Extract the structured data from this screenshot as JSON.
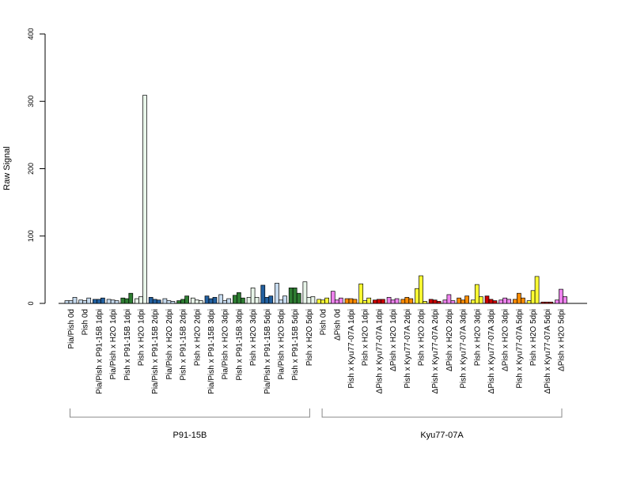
{
  "chart_data": {
    "type": "bar",
    "ylabel": "Raw Signal",
    "ylim": [
      0,
      400
    ],
    "yticks": [
      0,
      100,
      200,
      300,
      400
    ],
    "grid": false,
    "legend": "none",
    "bars_per_group": 3,
    "groups": [
      {
        "label": "Pia/Pish 0d",
        "colors": [
          "#c6dbef",
          "#c6dbef",
          "#c6dbef"
        ],
        "values": [
          4,
          4,
          9
        ]
      },
      {
        "label": "Pish 0d",
        "colors": [
          "#c6dbef",
          "#c6dbef",
          "#c6dbef"
        ],
        "values": [
          5,
          4,
          8
        ]
      },
      {
        "label": "Pia/Pish x P91-15B 1dpi",
        "colors": [
          "#2260a0",
          "#2260a0",
          "#2260a0"
        ],
        "values": [
          6,
          6,
          8
        ]
      },
      {
        "label": "Pia/Pish x H2O 1dpi",
        "colors": [
          "#c6dbef",
          "#c6dbef",
          "#c6dbef"
        ],
        "values": [
          6,
          5,
          4
        ]
      },
      {
        "label": "Pish x P91-15B 1dpi",
        "colors": [
          "#2e7d32",
          "#2e7d32",
          "#2e7d32"
        ],
        "values": [
          8,
          7,
          15
        ]
      },
      {
        "label": "Pish x H2O 1dpi",
        "colors": [
          "#e8f5e9",
          "#e8f5e9",
          "#e8f5e9"
        ],
        "values": [
          7,
          10,
          309
        ]
      },
      {
        "label": "Pia/Pish x P91-15B 2dpi",
        "colors": [
          "#2260a0",
          "#2260a0",
          "#2260a0"
        ],
        "values": [
          9,
          6,
          5
        ]
      },
      {
        "label": "Pia/Pish x H2O 2dpi",
        "colors": [
          "#c6dbef",
          "#c6dbef",
          "#c6dbef"
        ],
        "values": [
          7,
          4,
          3
        ]
      },
      {
        "label": "Pish x P91-15B 2dpi",
        "colors": [
          "#2e7d32",
          "#2e7d32",
          "#2e7d32"
        ],
        "values": [
          4,
          6,
          11
        ]
      },
      {
        "label": "Pish x H2O 2dpi",
        "colors": [
          "#e8f5e9",
          "#e8f5e9",
          "#e8f5e9"
        ],
        "values": [
          8,
          5,
          4
        ]
      },
      {
        "label": "Pia/Pish x P91-15B 3dpi",
        "colors": [
          "#2260a0",
          "#2260a0",
          "#2260a0"
        ],
        "values": [
          11,
          7,
          9
        ]
      },
      {
        "label": "Pia/Pish x H2O 3dpi",
        "colors": [
          "#c6dbef",
          "#c6dbef",
          "#c6dbef"
        ],
        "values": [
          13,
          4,
          7
        ]
      },
      {
        "label": "Pish x P91-15B 3dpi",
        "colors": [
          "#2e7d32",
          "#2e7d32",
          "#2e7d32"
        ],
        "values": [
          12,
          16,
          8
        ]
      },
      {
        "label": "Pish x H2O 3dpi",
        "colors": [
          "#e8f5e9",
          "#e8f5e9",
          "#e8f5e9"
        ],
        "values": [
          9,
          23,
          9
        ]
      },
      {
        "label": "Pia/Pish x P91-15B 5dpi",
        "colors": [
          "#2260a0",
          "#2260a0",
          "#2260a0"
        ],
        "values": [
          27,
          9,
          11
        ]
      },
      {
        "label": "Pia/Pish x H2O 5dpi",
        "colors": [
          "#c6dbef",
          "#c6dbef",
          "#c6dbef"
        ],
        "values": [
          30,
          5,
          11
        ]
      },
      {
        "label": "Pish x P91-15B 5dpi",
        "colors": [
          "#2e7d32",
          "#2e7d32",
          "#2e7d32"
        ],
        "values": [
          23,
          23,
          15
        ]
      },
      {
        "label": "Pish x H2O 5dpi",
        "colors": [
          "#e8f5e9",
          "#e8f5e9",
          "#e8f5e9"
        ],
        "values": [
          32,
          9,
          10
        ]
      },
      {
        "label": "Pish 0d",
        "colors": [
          "#ffff33",
          "#ffff33",
          "#ffff33"
        ],
        "values": [
          6,
          5,
          8
        ]
      },
      {
        "label": "ΔPish 0d",
        "colors": [
          "#ee82ee",
          "#ee82ee",
          "#ee82ee"
        ],
        "values": [
          18,
          5,
          8
        ]
      },
      {
        "label": "Pish x Kyu77-07A 1dpi",
        "colors": [
          "#ff8c00",
          "#ff8c00",
          "#ff8c00"
        ],
        "values": [
          7,
          7,
          6
        ]
      },
      {
        "label": "Pish x H2O 1dpi",
        "colors": [
          "#ffff33",
          "#ffff33",
          "#ffff33"
        ],
        "values": [
          29,
          4,
          8
        ]
      },
      {
        "label": "ΔPish x Kyu77-07A 1dpi",
        "colors": [
          "#cc0000",
          "#cc0000",
          "#cc0000"
        ],
        "values": [
          5,
          6,
          6
        ]
      },
      {
        "label": "ΔPish x H2O 1dpi",
        "colors": [
          "#ee82ee",
          "#ee82ee",
          "#ee82ee"
        ],
        "values": [
          9,
          5,
          7
        ]
      },
      {
        "label": "Pish x Kyu77-07A 2dpi",
        "colors": [
          "#ff8c00",
          "#ff8c00",
          "#ff8c00"
        ],
        "values": [
          6,
          9,
          7
        ]
      },
      {
        "label": "Pish x H2O 2dpi",
        "colors": [
          "#ffff33",
          "#ffff33",
          "#ffff33"
        ],
        "values": [
          22,
          41,
          3
        ]
      },
      {
        "label": "ΔPish x Kyu77-07A 2dpi",
        "colors": [
          "#cc0000",
          "#cc0000",
          "#cc0000"
        ],
        "values": [
          6,
          5,
          3
        ]
      },
      {
        "label": "ΔPish x H2O 2dpi",
        "colors": [
          "#ee82ee",
          "#ee82ee",
          "#ee82ee"
        ],
        "values": [
          5,
          13,
          4
        ]
      },
      {
        "label": "Pish x Kyu77-07A 3dpi",
        "colors": [
          "#ff8c00",
          "#ff8c00",
          "#ff8c00"
        ],
        "values": [
          8,
          5,
          11
        ]
      },
      {
        "label": "Pish x H2O 3dpi",
        "colors": [
          "#ffff33",
          "#ffff33",
          "#ffff33"
        ],
        "values": [
          5,
          28,
          10
        ]
      },
      {
        "label": "ΔPish x Kyu77-07A 3dpi",
        "colors": [
          "#cc0000",
          "#cc0000",
          "#cc0000"
        ],
        "values": [
          11,
          6,
          4
        ]
      },
      {
        "label": "ΔPish x H2O 3dpi",
        "colors": [
          "#ee82ee",
          "#ee82ee",
          "#ee82ee"
        ],
        "values": [
          5,
          8,
          6
        ]
      },
      {
        "label": "Pish x Kyu77-07A 5dpi",
        "colors": [
          "#ff8c00",
          "#ff8c00",
          "#ff8c00"
        ],
        "values": [
          6,
          15,
          8
        ]
      },
      {
        "label": "Pish x H2O 5dpi",
        "colors": [
          "#ffff33",
          "#ffff33",
          "#ffff33"
        ],
        "values": [
          4,
          19,
          40
        ]
      },
      {
        "label": "ΔPish x Kyu77-07A 5dpi",
        "colors": [
          "#cc0000",
          "#cc0000",
          "#cc0000"
        ],
        "values": [
          2,
          2,
          2
        ]
      },
      {
        "label": "ΔPish x H2O 5dpi",
        "colors": [
          "#ee82ee",
          "#ee82ee",
          "#ee82ee"
        ],
        "values": [
          5,
          21,
          10
        ]
      }
    ],
    "brackets": [
      {
        "label": "P91-15B",
        "from_group": 0,
        "to_group": 17
      },
      {
        "label": "Kyu77-07A",
        "from_group": 18,
        "to_group": 35
      }
    ]
  }
}
